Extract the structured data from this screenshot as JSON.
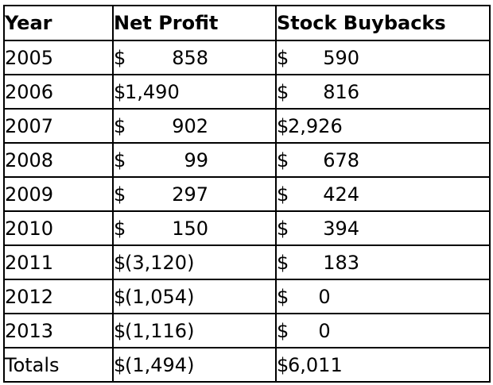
{
  "table": {
    "headers": [
      "Year",
      "Net Profit",
      "Stock Buybacks"
    ],
    "rows": [
      {
        "year": "2005",
        "net": {
          "cur": "$",
          "amt": "858"
        },
        "buy": {
          "cur": "$",
          "amt": "590"
        }
      },
      {
        "year": "2006",
        "net": {
          "cur": "$",
          "amt": "1,490"
        },
        "buy": {
          "cur": "$",
          "amt": "816"
        }
      },
      {
        "year": "2007",
        "net": {
          "cur": "$",
          "amt": "902"
        },
        "buy": {
          "cur": "$",
          "amt": "2,926"
        }
      },
      {
        "year": "2008",
        "net": {
          "cur": "$",
          "amt": "99"
        },
        "buy": {
          "cur": "$",
          "amt": "678"
        }
      },
      {
        "year": "2009",
        "net": {
          "cur": "$",
          "amt": "297"
        },
        "buy": {
          "cur": "$",
          "amt": "424"
        }
      },
      {
        "year": "2010",
        "net": {
          "cur": "$",
          "amt": "150"
        },
        "buy": {
          "cur": "$",
          "amt": "394"
        }
      },
      {
        "year": "2011",
        "net": {
          "cur": "$",
          "amt": "(3,120)"
        },
        "buy": {
          "cur": "$",
          "amt": "183"
        }
      },
      {
        "year": "2012",
        "net": {
          "cur": "$",
          "amt": "(1,054)"
        },
        "buy": {
          "cur": "$",
          "amt": "0"
        }
      },
      {
        "year": "2013",
        "net": {
          "cur": "$",
          "amt": "(1,116)"
        },
        "buy": {
          "cur": "$",
          "amt": "0"
        }
      },
      {
        "year": "Totals",
        "net": {
          "cur": "$",
          "amt": "(1,494)"
        },
        "buy": {
          "cur": "$",
          "amt": "6,011"
        }
      }
    ]
  }
}
